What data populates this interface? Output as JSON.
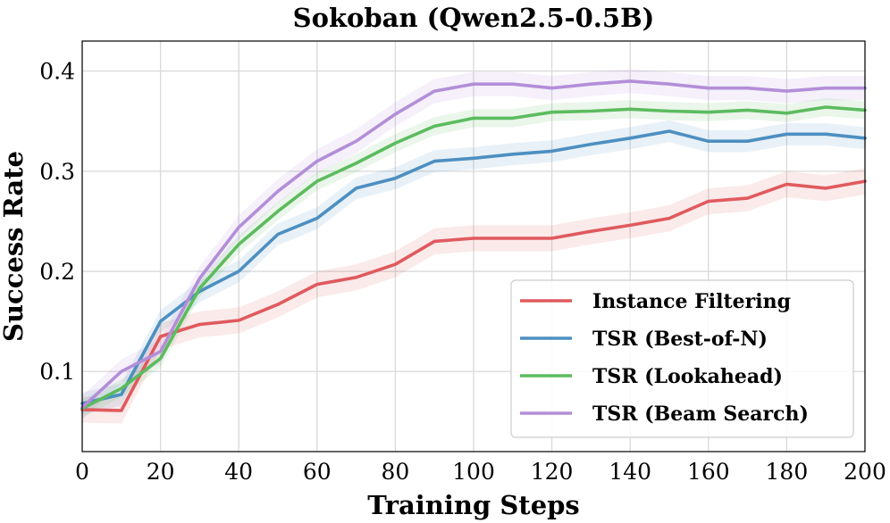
{
  "chart_data": {
    "type": "line",
    "title": "Sokoban (Qwen2.5-0.5B)",
    "xlabel": "Training Steps",
    "ylabel": "Success Rate",
    "xlim": [
      0,
      200
    ],
    "ylim": [
      0.02,
      0.43
    ],
    "xticks": [
      0,
      20,
      40,
      60,
      80,
      100,
      120,
      140,
      160,
      180,
      200
    ],
    "yticks": [
      0.1,
      0.2,
      0.3,
      0.4
    ],
    "grid": true,
    "legend_position": "lower-right",
    "x": [
      0,
      10,
      20,
      30,
      40,
      50,
      60,
      70,
      80,
      90,
      100,
      110,
      120,
      130,
      140,
      150,
      160,
      170,
      180,
      190,
      200
    ],
    "series": [
      {
        "name": "Instance Filtering",
        "color": "#e05a5e",
        "band": 0.013,
        "values": [
          0.062,
          0.061,
          0.135,
          0.147,
          0.151,
          0.167,
          0.187,
          0.194,
          0.207,
          0.23,
          0.233,
          0.233,
          0.233,
          0.24,
          0.246,
          0.253,
          0.27,
          0.273,
          0.287,
          0.283,
          0.29
        ]
      },
      {
        "name": "TSR (Best-of-N)",
        "color": "#4d8fc1",
        "band": 0.011,
        "values": [
          0.068,
          0.077,
          0.15,
          0.18,
          0.2,
          0.237,
          0.253,
          0.283,
          0.293,
          0.31,
          0.313,
          0.317,
          0.32,
          0.327,
          0.333,
          0.34,
          0.33,
          0.33,
          0.337,
          0.337,
          0.333
        ]
      },
      {
        "name": "TSR (Lookahead)",
        "color": "#5cbb5e",
        "band": 0.009,
        "values": [
          0.063,
          0.083,
          0.113,
          0.183,
          0.227,
          0.26,
          0.29,
          0.308,
          0.328,
          0.345,
          0.353,
          0.353,
          0.359,
          0.36,
          0.362,
          0.36,
          0.359,
          0.361,
          0.358,
          0.364,
          0.361
        ]
      },
      {
        "name": "TSR (Beam Search)",
        "color": "#b38ed8",
        "band": 0.012,
        "values": [
          0.064,
          0.1,
          0.12,
          0.193,
          0.244,
          0.28,
          0.31,
          0.33,
          0.357,
          0.38,
          0.387,
          0.387,
          0.383,
          0.387,
          0.39,
          0.387,
          0.383,
          0.383,
          0.38,
          0.383,
          0.383
        ]
      }
    ]
  }
}
